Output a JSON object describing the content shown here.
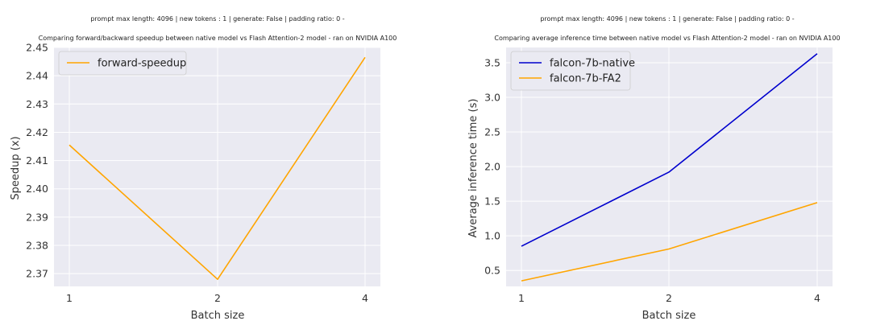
{
  "chart_data": [
    {
      "type": "line",
      "suptitle": "prompt max length: 4096 | new tokens : 1 | generate: False | padding ratio: 0 -",
      "title": "Comparing forward/backward speedup between native model vs Flash Attention-2 model - ran on NVIDIA A100",
      "xlabel": "Batch size",
      "ylabel": "Speedup (x)",
      "x": [
        1,
        2,
        4
      ],
      "xticks": [
        "1",
        "2",
        "4"
      ],
      "yticks": [
        "2.37",
        "2.38",
        "2.39",
        "2.40",
        "2.41",
        "2.42",
        "2.43",
        "2.44",
        "2.45"
      ],
      "ylim": [
        2.3655,
        2.45
      ],
      "grid": true,
      "legend_position": "top-left",
      "series": [
        {
          "name": "forward-speedup",
          "color": "#ffa500",
          "values": [
            2.4155,
            2.368,
            2.4465
          ]
        }
      ]
    },
    {
      "type": "line",
      "suptitle": "prompt max length: 4096 | new tokens : 1 | generate: False | padding ratio: 0 -",
      "title": "Comparing average inference time between native model vs Flash Attention-2 model - ran on NVIDIA A100",
      "xlabel": "Batch size",
      "ylabel": "Average inference time (s)",
      "x": [
        1,
        2,
        4
      ],
      "xticks": [
        "1",
        "2",
        "4"
      ],
      "yticks": [
        "0.5",
        "1.0",
        "1.5",
        "2.0",
        "2.5",
        "3.0",
        "3.5"
      ],
      "ylim": [
        0.27,
        3.72
      ],
      "grid": true,
      "legend_position": "top-left",
      "series": [
        {
          "name": "falcon-7b-native",
          "color": "#0000cd",
          "values": [
            0.85,
            1.92,
            3.63
          ]
        },
        {
          "name": "falcon-7b-FA2",
          "color": "#ffa500",
          "values": [
            0.35,
            0.81,
            1.48
          ]
        }
      ]
    }
  ]
}
